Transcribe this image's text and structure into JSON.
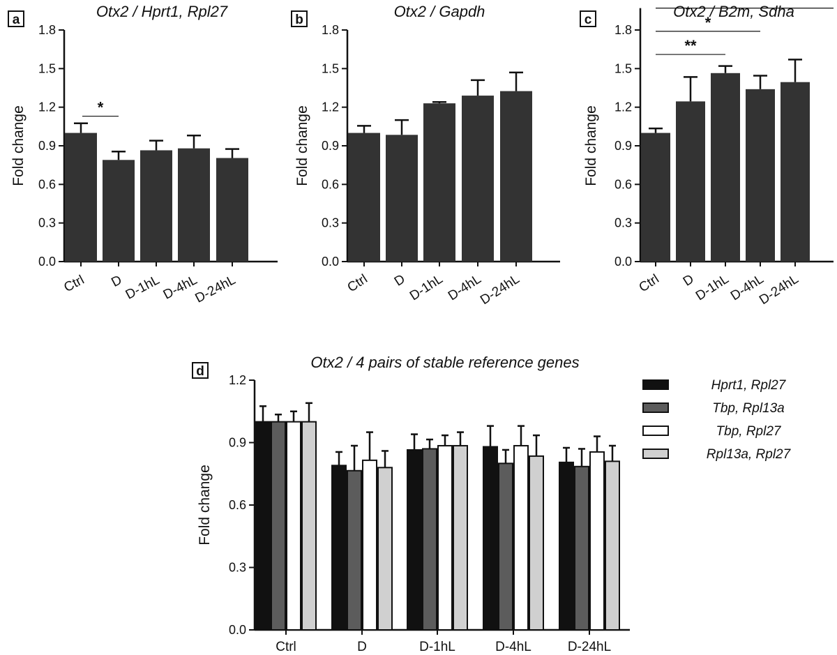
{
  "chart_data": [
    {
      "panel": "a",
      "type": "bar",
      "title": "Otx2 / Hprt1, Rpl27",
      "ylabel": "Fold change",
      "xlabel": "",
      "categories": [
        "Ctrl",
        "D",
        "D-1hL",
        "D-4hL",
        "D-24hL"
      ],
      "values": [
        1.0,
        0.79,
        0.865,
        0.88,
        0.805
      ],
      "errors": [
        0.075,
        0.065,
        0.075,
        0.1,
        0.07
      ],
      "ylim": [
        0,
        1.8
      ],
      "yticks": [
        "0.0",
        "0.3",
        "0.6",
        "0.9",
        "1.2",
        "1.5",
        "1.8"
      ],
      "bar_color": "#333333",
      "significance": [
        {
          "from": 0,
          "to": 1,
          "label": "*",
          "y": 1.13
        }
      ]
    },
    {
      "panel": "b",
      "type": "bar",
      "title": "Otx2 / Gapdh",
      "ylabel": "Fold change",
      "xlabel": "",
      "categories": [
        "Ctrl",
        "D",
        "D-1hL",
        "D-4hL",
        "D-24hL"
      ],
      "values": [
        1.0,
        0.985,
        1.23,
        1.29,
        1.325
      ],
      "errors": [
        0.055,
        0.115,
        0.01,
        0.12,
        0.145
      ],
      "ylim": [
        0,
        1.8
      ],
      "yticks": [
        "0.0",
        "0.3",
        "0.6",
        "0.9",
        "1.2",
        "1.5",
        "1.8"
      ],
      "bar_color": "#333333",
      "significance": []
    },
    {
      "panel": "c",
      "type": "bar",
      "title": "Otx2 / B2m, Sdha",
      "ylabel": "Fold change",
      "xlabel": "",
      "categories": [
        "Ctrl",
        "D",
        "D-1hL",
        "D-4hL",
        "D-24hL"
      ],
      "values": [
        1.0,
        1.245,
        1.465,
        1.34,
        1.395
      ],
      "errors": [
        0.035,
        0.19,
        0.055,
        0.105,
        0.175
      ],
      "ylim": [
        0,
        2.0
      ],
      "yticks": [
        "0.0",
        "0.3",
        "0.6",
        "0.9",
        "1.2",
        "1.5",
        "1.8"
      ],
      "bar_color": "#333333",
      "significance": [
        {
          "from": 0,
          "to": 2,
          "label": "**",
          "y": 1.61
        },
        {
          "from": 0,
          "to": 3,
          "label": "*",
          "y": 1.79
        },
        {
          "from": 0,
          "to": 4,
          "label": "*",
          "y": 1.97
        }
      ]
    },
    {
      "panel": "d",
      "type": "bar",
      "title": "Otx2 / 4 pairs of stable reference genes",
      "ylabel": "Fold change",
      "xlabel": "",
      "categories": [
        "Ctrl",
        "D",
        "D-1hL",
        "D-4hL",
        "D-24hL"
      ],
      "ylim": [
        0,
        1.2
      ],
      "yticks": [
        "0.0",
        "0.3",
        "0.6",
        "0.9",
        "1.2"
      ],
      "legend_position": "top-right",
      "series": [
        {
          "name": "Hprt1, Rpl27",
          "color": "#111111",
          "values": [
            1.0,
            0.79,
            0.865,
            0.88,
            0.805
          ],
          "errors": [
            0.075,
            0.065,
            0.075,
            0.1,
            0.07
          ]
        },
        {
          "name": "Tbp, Rpl13a",
          "color": "#5c5c5c",
          "values": [
            1.0,
            0.765,
            0.87,
            0.8,
            0.785
          ],
          "errors": [
            0.035,
            0.12,
            0.045,
            0.065,
            0.085
          ]
        },
        {
          "name": "Tbp, Rpl27",
          "color": "#ffffff",
          "values": [
            1.0,
            0.815,
            0.885,
            0.885,
            0.855
          ],
          "errors": [
            0.05,
            0.135,
            0.05,
            0.095,
            0.075
          ]
        },
        {
          "name": "Rpl13a, Rpl27",
          "color": "#d0d0d0",
          "values": [
            1.0,
            0.78,
            0.885,
            0.835,
            0.81
          ],
          "errors": [
            0.09,
            0.08,
            0.065,
            0.1,
            0.075
          ]
        }
      ]
    }
  ]
}
